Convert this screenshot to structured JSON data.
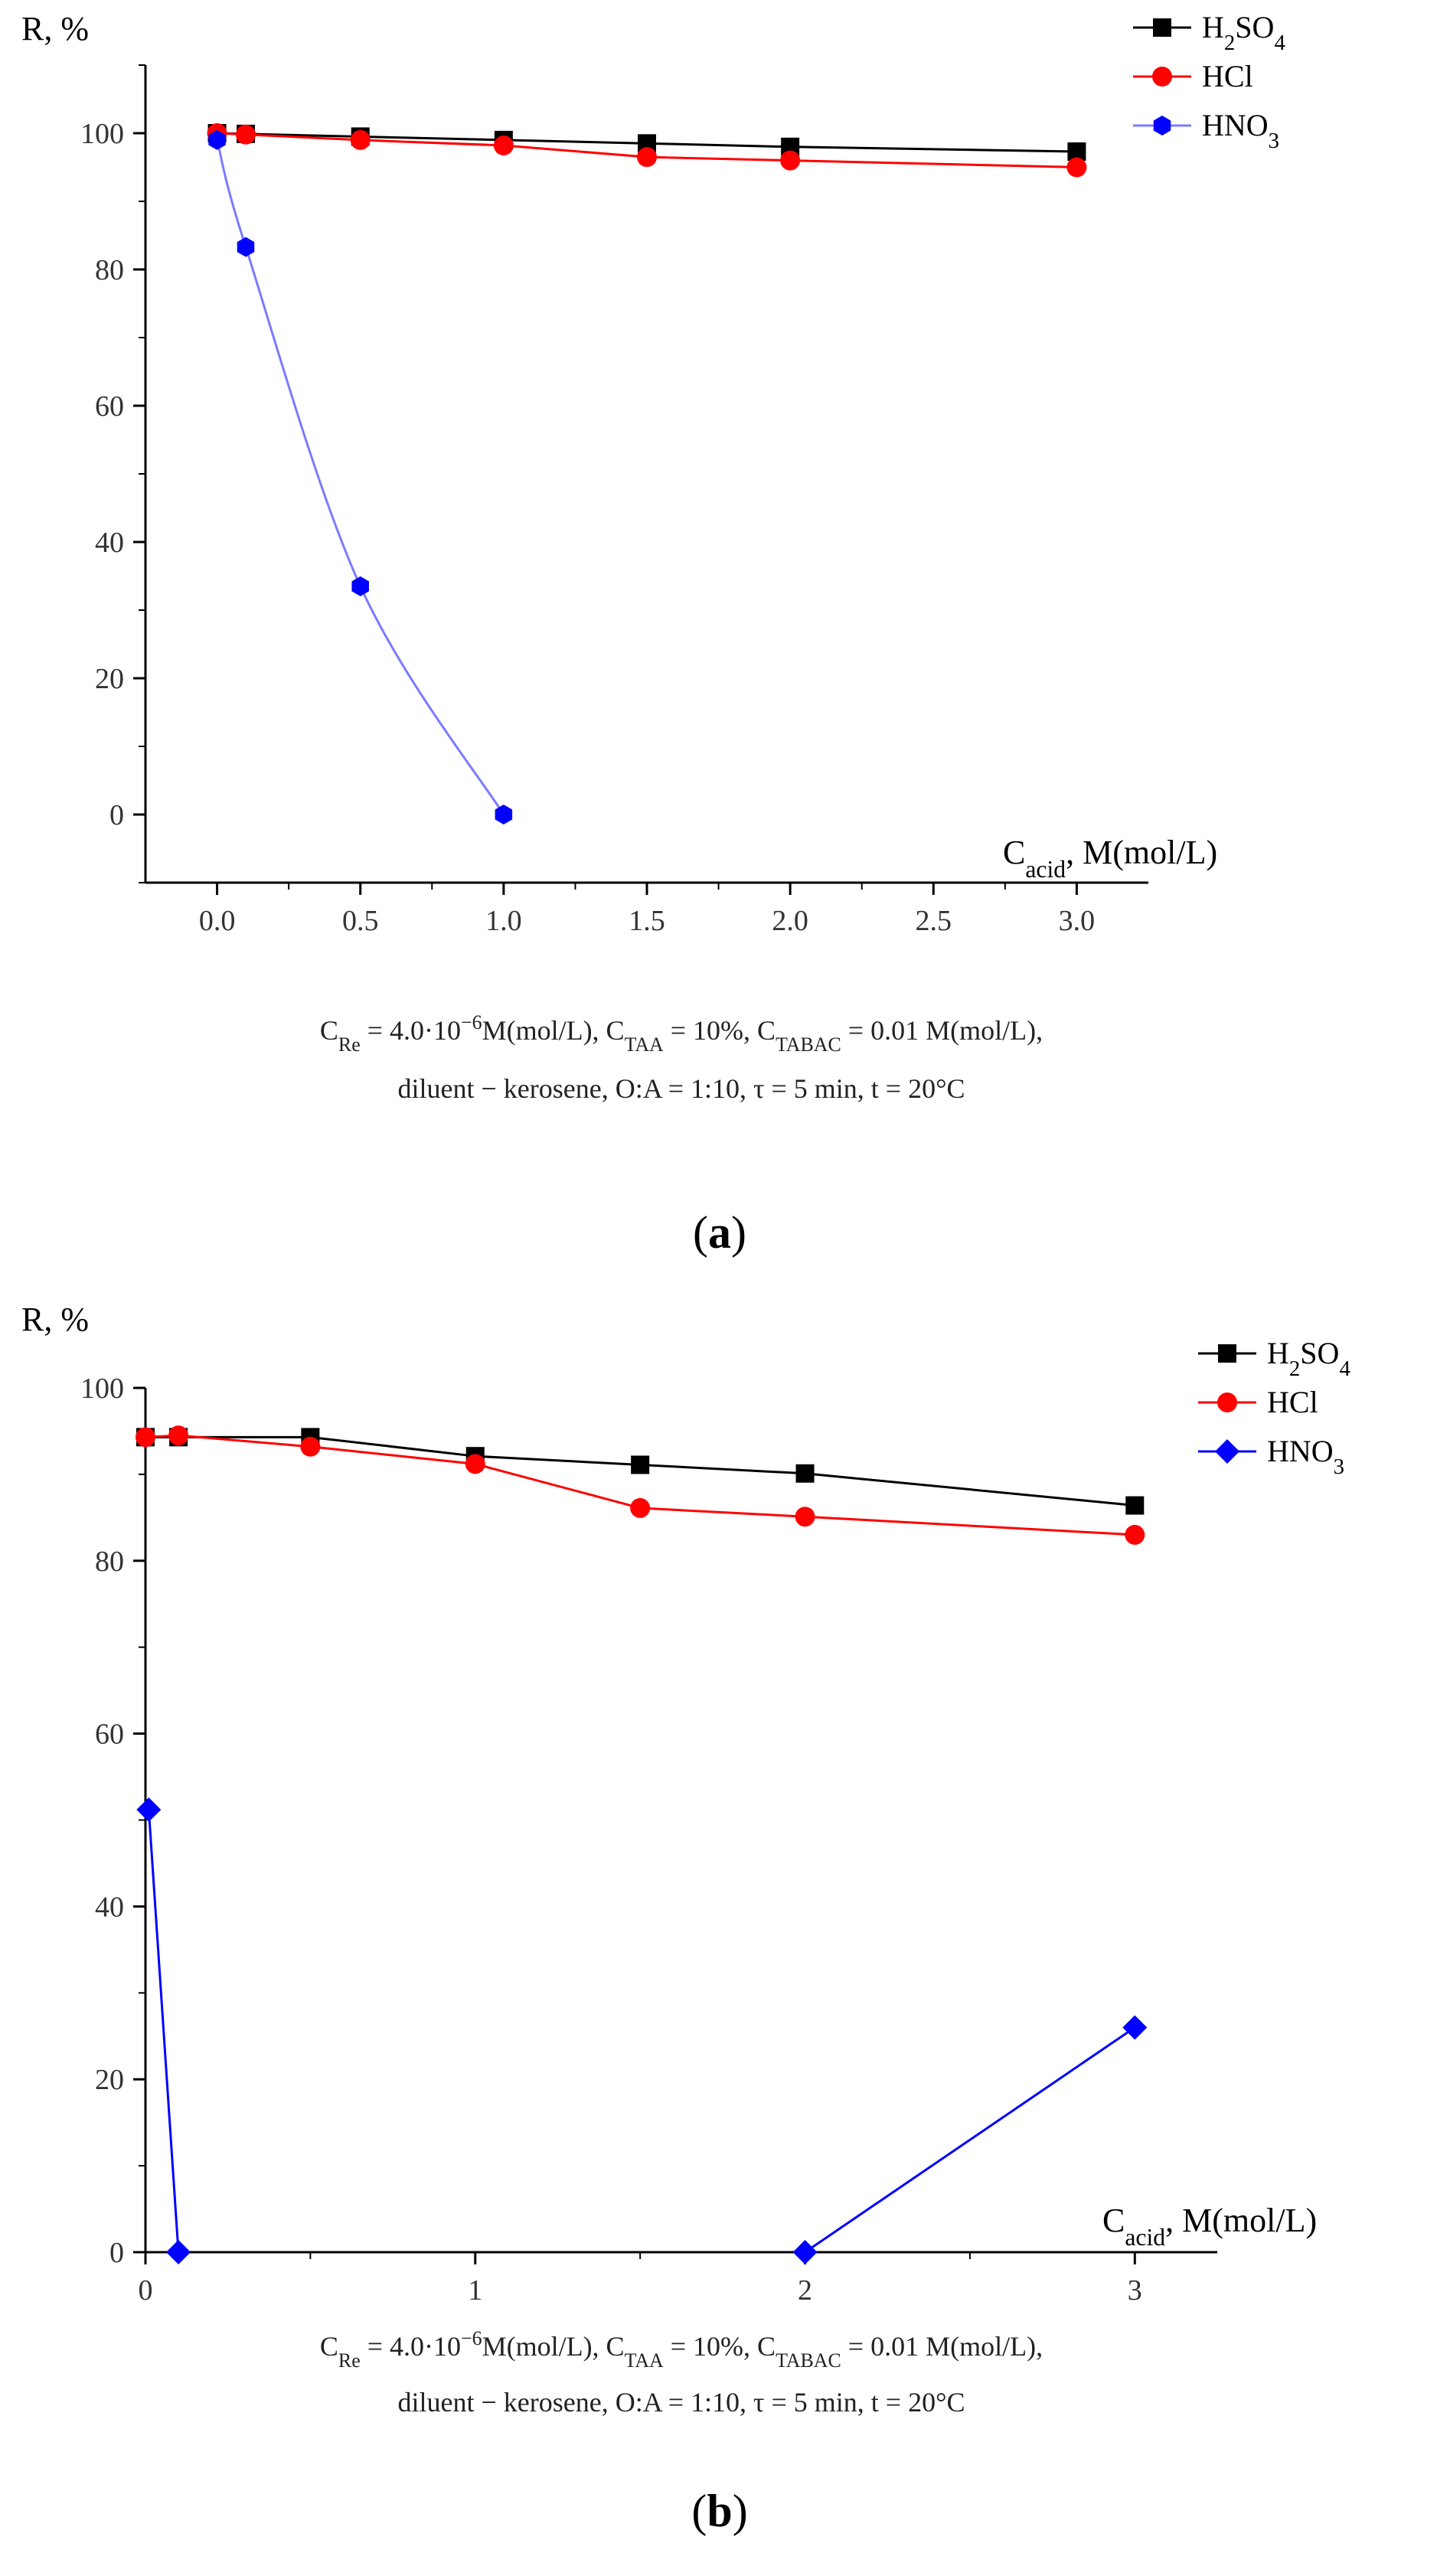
{
  "colors": {
    "black": "#000000",
    "red": "#ff0000",
    "blue": "#0000ff",
    "blue_fit": "#7b7bff"
  },
  "chart_data": [
    {
      "type": "line",
      "panel": "a",
      "panel_label": "(a)",
      "ylabel_html": "R, %",
      "xlabel": {
        "main": "C",
        "sub": "acid",
        "rest": ", M(mol/L)"
      },
      "xlim": [
        -0.25,
        3.25
      ],
      "ylim": [
        -10,
        110
      ],
      "xticks": [
        0,
        0.5,
        1,
        1.5,
        2,
        2.5,
        3
      ],
      "xtick_labels": [
        "0.0",
        "0.5",
        "1.0",
        "1.5",
        "2.0",
        "2.5",
        "3.0"
      ],
      "yticks": [
        0,
        20,
        40,
        60,
        80,
        100
      ],
      "ytick_labels": [
        "0",
        "20",
        "40",
        "60",
        "80",
        "100"
      ],
      "series": [
        {
          "name": "H2SO4",
          "label_parts": [
            [
              "H",
              ""
            ],
            [
              "2",
              "sub"
            ],
            [
              "SO",
              ""
            ],
            [
              "4",
              "sub"
            ]
          ],
          "color": "#000000",
          "marker": "square",
          "x": [
            0,
            0.1,
            0.5,
            1,
            1.5,
            2,
            3
          ],
          "y": [
            100,
            99.9,
            99.5,
            99,
            98.5,
            98,
            97.3
          ]
        },
        {
          "name": "HCl",
          "label_parts": [
            [
              "HCl",
              ""
            ]
          ],
          "color": "#ff0000",
          "marker": "circle",
          "x": [
            0,
            0.1,
            0.5,
            1,
            1.5,
            2,
            3
          ],
          "y": [
            100,
            99.8,
            99,
            98.2,
            96.5,
            96,
            95
          ]
        },
        {
          "name": "HNO3",
          "label_parts": [
            [
              "HNO",
              ""
            ],
            [
              "3",
              "sub"
            ]
          ],
          "color": "#0000ff",
          "marker": "hexagon",
          "smooth": true,
          "x": [
            0,
            0.1,
            0.5,
            1
          ],
          "y": [
            99,
            83.3,
            33.5,
            0
          ]
        }
      ],
      "conditions_line1": [
        [
          "C",
          ""
        ],
        [
          "Re",
          "sub"
        ],
        [
          " = 4.0·10",
          ""
        ],
        [
          "−6",
          "sup"
        ],
        [
          "M(mol/L), C",
          ""
        ],
        [
          "TAA",
          "sub"
        ],
        [
          " = 10%, C",
          ""
        ],
        [
          "TABAC",
          "sub"
        ],
        [
          " = 0.01 M(mol/L),",
          ""
        ]
      ],
      "conditions_line2": "diluent − kerosene, O:A = 1:10, τ = 5 min, t = 20°C"
    },
    {
      "type": "line",
      "panel": "b",
      "panel_label": "(b)",
      "ylabel_html": "R, %",
      "xlabel": {
        "main": "C",
        "sub": "acid",
        "rest": ", M(mol/L)"
      },
      "xlim": [
        0,
        3.25
      ],
      "ylim": [
        0,
        100
      ],
      "xticks": [
        0,
        1,
        2,
        3
      ],
      "xtick_labels": [
        "0",
        "1",
        "2",
        "3"
      ],
      "yticks": [
        0,
        20,
        40,
        60,
        80,
        100
      ],
      "ytick_labels": [
        "0",
        "20",
        "40",
        "60",
        "80",
        "100"
      ],
      "series": [
        {
          "name": "H2SO4",
          "label_parts": [
            [
              "H",
              ""
            ],
            [
              "2",
              "sub"
            ],
            [
              "SO",
              ""
            ],
            [
              "4",
              "sub"
            ]
          ],
          "color": "#000000",
          "marker": "square",
          "x": [
            0,
            0.1,
            0.5,
            1,
            1.5,
            2,
            3
          ],
          "y": [
            94.3,
            94.3,
            94.3,
            92.1,
            91.1,
            90.1,
            86.4
          ]
        },
        {
          "name": "HCl",
          "label_parts": [
            [
              "HCl",
              ""
            ]
          ],
          "color": "#ff0000",
          "marker": "circle",
          "x": [
            0,
            0.1,
            0.5,
            1,
            1.5,
            2,
            3
          ],
          "y": [
            94.3,
            94.5,
            93.2,
            91.2,
            86.1,
            85.1,
            83
          ]
        },
        {
          "name": "HNO3",
          "label_parts": [
            [
              "HNO",
              ""
            ],
            [
              "3",
              "sub"
            ]
          ],
          "color": "#0000ff",
          "marker": "diamond",
          "segments": [
            [
              0,
              1
            ],
            [
              2,
              3
            ]
          ],
          "x": [
            0.01,
            0.1,
            2,
            3
          ],
          "y": [
            51.2,
            0,
            0,
            26
          ]
        }
      ],
      "conditions_line1": [
        [
          "C",
          ""
        ],
        [
          "Re",
          "sub"
        ],
        [
          " = 4.0·10",
          ""
        ],
        [
          "−6",
          "sup"
        ],
        [
          "M(mol/L), C",
          ""
        ],
        [
          "TAA",
          "sub"
        ],
        [
          " = 10%, C",
          ""
        ],
        [
          "TABAC",
          "sub"
        ],
        [
          " = 0.01 M(mol/L),",
          ""
        ]
      ],
      "conditions_line2": "diluent − kerosene, O:A = 1:10, τ = 5 min, t = 20°C"
    }
  ]
}
